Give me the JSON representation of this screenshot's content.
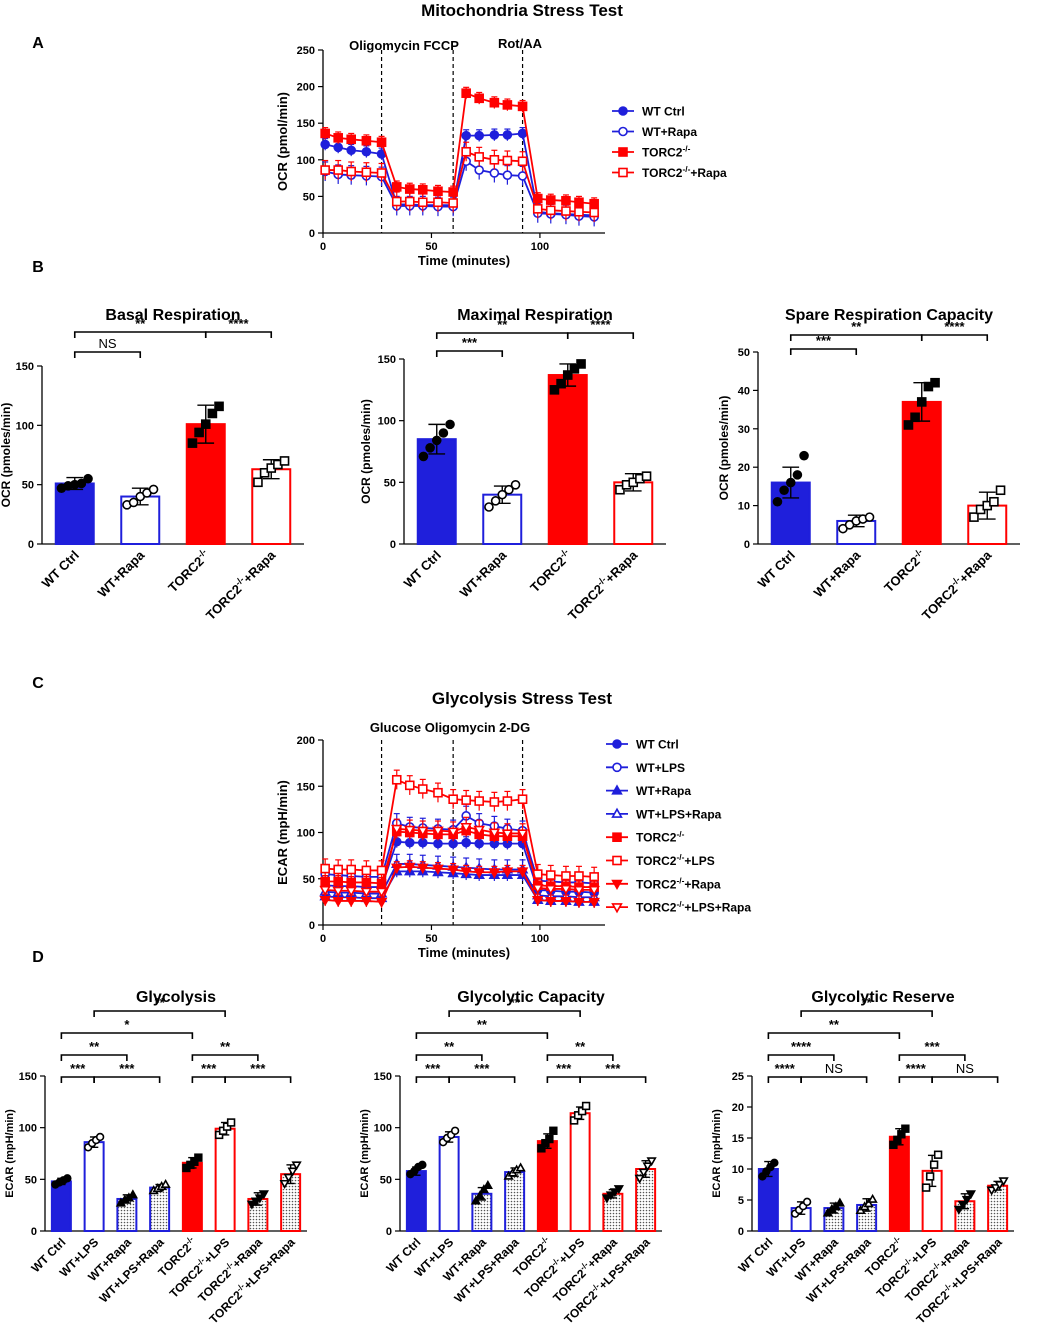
{
  "figure": {
    "panel_letters": [
      "A",
      "B",
      "C",
      "D"
    ]
  },
  "colors": {
    "blue": "#1f1fdb",
    "red": "#ff0000",
    "black": "#000000"
  },
  "chart_data": [
    {
      "id": "mito",
      "type": "line",
      "title": "Mitochondria Stress Test",
      "xlabel": "Time (minutes)",
      "ylabel": "OCR (pmol/min)",
      "xlim": [
        0,
        130
      ],
      "ylim": [
        0,
        250
      ],
      "xticks": [
        0,
        50,
        100
      ],
      "yticks": [
        0,
        50,
        100,
        150,
        200,
        250
      ],
      "injections": [
        {
          "x": 27,
          "label": "Oligomycin"
        },
        {
          "x": 60,
          "label": "FCCP"
        },
        {
          "x": 92,
          "label": "Rot/AA"
        }
      ],
      "x": [
        1,
        7,
        13,
        20,
        27,
        34,
        40,
        46,
        53,
        60,
        66,
        72,
        79,
        85,
        92,
        99,
        105,
        112,
        118,
        125
      ],
      "series": [
        {
          "name": "WT Ctrl",
          "sup": "",
          "color": "blue",
          "marker": "circle",
          "filled": true,
          "values": [
            121,
            117,
            113,
            111,
            108,
            39,
            39,
            38,
            38,
            38,
            133,
            133,
            134,
            134,
            136,
            29,
            27,
            26,
            25,
            24
          ]
        },
        {
          "name": "WT+Rapa",
          "sup": "",
          "color": "blue",
          "marker": "circle",
          "filled": false,
          "values": [
            84,
            80,
            79,
            78,
            77,
            37,
            37,
            37,
            36,
            36,
            98,
            86,
            82,
            79,
            78,
            27,
            26,
            25,
            23,
            22
          ]
        },
        {
          "name": "TORC2",
          "sup": "-/-",
          "color": "red",
          "marker": "square",
          "filled": true,
          "values": [
            136,
            130,
            128,
            126,
            124,
            63,
            60,
            59,
            57,
            56,
            191,
            184,
            178,
            175,
            173,
            47,
            45,
            44,
            42,
            40
          ]
        },
        {
          "name": "TORC2",
          "sup": "-/-",
          "suffix": "+Rapa",
          "color": "red",
          "marker": "square",
          "filled": false,
          "values": [
            86,
            86,
            84,
            83,
            82,
            43,
            43,
            42,
            42,
            41,
            111,
            104,
            100,
            99,
            98,
            33,
            31,
            30,
            29,
            28
          ]
        }
      ]
    },
    {
      "id": "basal",
      "type": "bar",
      "title": "Basal Respiration",
      "ylabel": "OCR (pmoles/min)",
      "ylim": [
        0,
        150
      ],
      "yticks": [
        0,
        50,
        100,
        150
      ],
      "categories": [
        "WT Ctrl",
        "WT+Rapa",
        "TORC2-/-",
        "TORC2-/-+Rapa"
      ],
      "values": [
        51,
        40,
        101,
        63
      ],
      "errors": [
        5,
        7,
        16,
        8
      ],
      "points": [
        [
          47,
          49,
          50,
          51,
          55
        ],
        [
          33,
          35,
          40,
          43,
          46
        ],
        [
          85,
          94,
          101,
          110,
          116
        ],
        [
          52,
          60,
          64,
          67,
          70
        ]
      ],
      "significance": [
        {
          "from": 0,
          "to": 1,
          "label": "NS",
          "level": 1
        },
        {
          "from": 0,
          "to": 2,
          "label": "**",
          "level": 2
        },
        {
          "from": 2,
          "to": 3,
          "label": "****",
          "level": 2
        }
      ]
    },
    {
      "id": "maximal",
      "type": "bar",
      "title": "Maximal Respiration",
      "ylabel": "OCR (pmoles/min)",
      "ylim": [
        0,
        150
      ],
      "yticks": [
        0,
        50,
        100,
        150
      ],
      "categories": [
        "WT Ctrl",
        "WT+Rapa",
        "TORC2-/-",
        "TORC2-/-+Rapa"
      ],
      "values": [
        85,
        40,
        137,
        50
      ],
      "errors": [
        12,
        7,
        9,
        7
      ],
      "points": [
        [
          71,
          78,
          84,
          90,
          97
        ],
        [
          30,
          35,
          40,
          44,
          48
        ],
        [
          125,
          130,
          137,
          142,
          146
        ],
        [
          44,
          48,
          50,
          53,
          55
        ]
      ],
      "significance": [
        {
          "from": 0,
          "to": 1,
          "label": "***",
          "level": 1
        },
        {
          "from": 0,
          "to": 2,
          "label": "**",
          "level": 2
        },
        {
          "from": 2,
          "to": 3,
          "label": "****",
          "level": 2
        }
      ]
    },
    {
      "id": "spare",
      "type": "bar",
      "title": "Spare Respiration Capacity",
      "ylabel": "OCR (pmoles/min)",
      "ylim": [
        0,
        50
      ],
      "yticks": [
        0,
        10,
        20,
        30,
        40,
        50
      ],
      "categories": [
        "WT Ctrl",
        "WT+Rapa",
        "TORC2-/-",
        "TORC2-/-+Rapa"
      ],
      "values": [
        16,
        6,
        37,
        10
      ],
      "errors": [
        4,
        1.5,
        5,
        3.5
      ],
      "points": [
        [
          11,
          14,
          16,
          18,
          23
        ],
        [
          4,
          5,
          6,
          6.5,
          7
        ],
        [
          31,
          33,
          37,
          41,
          42
        ],
        [
          7,
          9,
          10,
          11,
          14
        ]
      ],
      "significance": [
        {
          "from": 0,
          "to": 1,
          "label": "***",
          "level": 1
        },
        {
          "from": 0,
          "to": 2,
          "label": "**",
          "level": 2
        },
        {
          "from": 2,
          "to": 3,
          "label": "****",
          "level": 2
        }
      ]
    },
    {
      "id": "glyco",
      "type": "line",
      "title": "Glycolysis Stress Test",
      "xlabel": "Time (minutes)",
      "ylabel": "ECAR (mpH/min)",
      "xlim": [
        0,
        130
      ],
      "ylim": [
        0,
        200
      ],
      "xticks": [
        0,
        50,
        100
      ],
      "yticks": [
        0,
        50,
        100,
        150,
        200
      ],
      "injections": [
        {
          "x": 27,
          "label": "Glucose"
        },
        {
          "x": 60,
          "label": "Oligomycin"
        },
        {
          "x": 92,
          "label": "2-DG"
        }
      ],
      "x": [
        1,
        7,
        13,
        20,
        27,
        34,
        40,
        46,
        53,
        60,
        66,
        72,
        79,
        85,
        92,
        99,
        105,
        112,
        118,
        125
      ],
      "series": [
        {
          "name": "WT Ctrl",
          "sup": "",
          "color": "blue",
          "marker": "circle",
          "filled": true,
          "values": [
            43,
            42,
            42,
            41,
            41,
            90,
            89,
            89,
            88,
            88,
            89,
            88,
            88,
            88,
            88,
            38,
            37,
            36,
            36,
            35
          ]
        },
        {
          "name": "WT+LPS",
          "sup": "",
          "color": "blue",
          "marker": "circle",
          "filled": false,
          "values": [
            55,
            54,
            53,
            52,
            52,
            110,
            106,
            105,
            104,
            103,
            118,
            110,
            107,
            104,
            102,
            48,
            47,
            46,
            46,
            45
          ]
        },
        {
          "name": "WT+Rapa",
          "sup": "",
          "color": "blue",
          "marker": "triangle",
          "filled": true,
          "values": [
            31,
            30,
            30,
            29,
            29,
            58,
            58,
            58,
            57,
            56,
            55,
            54,
            54,
            54,
            54,
            27,
            26,
            26,
            25,
            25
          ]
        },
        {
          "name": "WT+LPS+Rapa",
          "sup": "",
          "color": "blue",
          "marker": "triangle",
          "filled": false,
          "values": [
            36,
            35,
            35,
            34,
            34,
            66,
            66,
            65,
            64,
            63,
            62,
            61,
            60,
            60,
            60,
            32,
            31,
            31,
            30,
            30
          ]
        },
        {
          "name": "TORC2",
          "sup": "-/-",
          "color": "red",
          "marker": "square",
          "filled": true,
          "values": [
            47,
            47,
            46,
            46,
            45,
            101,
            100,
            99,
            98,
            98,
            102,
            98,
            96,
            96,
            96,
            43,
            42,
            42,
            41,
            41
          ]
        },
        {
          "name": "TORC2",
          "sup": "-/-",
          "suffix": "+LPS",
          "color": "red",
          "marker": "square",
          "filled": false,
          "values": [
            61,
            60,
            60,
            59,
            59,
            157,
            151,
            147,
            143,
            136,
            135,
            134,
            133,
            134,
            136,
            55,
            54,
            53,
            53,
            52
          ]
        },
        {
          "name": "TORC2",
          "sup": "-/-",
          "suffix": "+Rapa",
          "color": "red",
          "marker": "triangle-down",
          "filled": true,
          "values": [
            27,
            26,
            26,
            26,
            25,
            62,
            63,
            62,
            61,
            60,
            58,
            57,
            57,
            58,
            58,
            27,
            26,
            26,
            25,
            25
          ]
        },
        {
          "name": "TORC2",
          "sup": "-/-",
          "suffix": "+LPS+Rapa",
          "color": "red",
          "marker": "triangle-down",
          "filled": false,
          "values": [
            38,
            37,
            37,
            36,
            36,
            104,
            103,
            102,
            102,
            101,
            106,
            103,
            100,
            99,
            99,
            40,
            39,
            39,
            38,
            38
          ]
        }
      ]
    },
    {
      "id": "glycolysis",
      "type": "bar",
      "title": "Glycolysis",
      "ylabel": "ECAR (mpH/min)",
      "ylim": [
        0,
        150
      ],
      "yticks": [
        0,
        50,
        100,
        150
      ],
      "categories": [
        "WT Ctrl",
        "WT+LPS",
        "WT+Rapa",
        "WT+LPS+Rapa",
        "TORC2-/-",
        "TORC2-/-+LPS",
        "TORC2-/-+Rapa",
        "TORC2-/-+LPS+Rapa"
      ],
      "values": [
        48,
        86,
        31,
        42,
        66,
        99,
        31,
        55
      ],
      "errors": [
        3,
        5,
        4,
        3,
        5,
        6,
        6,
        9
      ],
      "points": [
        [
          45,
          47,
          49,
          51
        ],
        [
          81,
          85,
          88,
          91
        ],
        [
          27,
          30,
          32,
          35
        ],
        [
          39,
          41,
          43,
          45
        ],
        [
          61,
          64,
          67,
          71
        ],
        [
          93,
          97,
          101,
          105
        ],
        [
          26,
          29,
          32,
          36
        ],
        [
          46,
          52,
          58,
          64
        ]
      ],
      "significance": [
        {
          "from": 0,
          "to": 1,
          "label": "***",
          "level": 1
        },
        {
          "from": 1,
          "to": 3,
          "label": "***",
          "level": 1
        },
        {
          "from": 4,
          "to": 5,
          "label": "***",
          "level": 1
        },
        {
          "from": 5,
          "to": 7,
          "label": "***",
          "level": 1
        },
        {
          "from": 0,
          "to": 2,
          "label": "**",
          "level": 2
        },
        {
          "from": 4,
          "to": 6,
          "label": "**",
          "level": 2
        },
        {
          "from": 0,
          "to": 4,
          "label": "*",
          "level": 3
        },
        {
          "from": 1,
          "to": 5,
          "label": "**",
          "level": 4
        }
      ]
    },
    {
      "id": "capacity",
      "type": "bar",
      "title": "Glycolytic Capacity",
      "ylabel": "ECAR (mpH/min)",
      "ylim": [
        0,
        150
      ],
      "yticks": [
        0,
        50,
        100,
        150
      ],
      "categories": [
        "WT Ctrl",
        "WT+LPS",
        "WT+Rapa",
        "WT+LPS+Rapa",
        "TORC2-/-",
        "TORC2-/-+LPS",
        "TORC2-/-+Rapa",
        "TORC2-/-+LPS+Rapa"
      ],
      "values": [
        58,
        91,
        36,
        57,
        87,
        114,
        36,
        60
      ],
      "errors": [
        4,
        5,
        6,
        4,
        7,
        6,
        4,
        8
      ],
      "points": [
        [
          55,
          58,
          62,
          64
        ],
        [
          86,
          90,
          93,
          97
        ],
        [
          29,
          34,
          40,
          44
        ],
        [
          53,
          56,
          59,
          61
        ],
        [
          80,
          85,
          89,
          97
        ],
        [
          107,
          112,
          116,
          121
        ],
        [
          32,
          35,
          38,
          41
        ],
        [
          51,
          57,
          63,
          68
        ]
      ],
      "significance": [
        {
          "from": 0,
          "to": 1,
          "label": "***",
          "level": 1
        },
        {
          "from": 1,
          "to": 3,
          "label": "***",
          "level": 1
        },
        {
          "from": 4,
          "to": 5,
          "label": "***",
          "level": 1
        },
        {
          "from": 5,
          "to": 7,
          "label": "***",
          "level": 1
        },
        {
          "from": 0,
          "to": 2,
          "label": "**",
          "level": 2
        },
        {
          "from": 4,
          "to": 6,
          "label": "**",
          "level": 2
        },
        {
          "from": 0,
          "to": 4,
          "label": "**",
          "level": 3
        },
        {
          "from": 1,
          "to": 5,
          "label": "**",
          "level": 4
        }
      ]
    },
    {
      "id": "reserve",
      "type": "bar",
      "title": "Glycolytic Reserve",
      "ylabel": "ECAR (mpH/min)",
      "ylim": [
        0,
        25
      ],
      "yticks": [
        0,
        5,
        10,
        15,
        20,
        25
      ],
      "categories": [
        "WT Ctrl",
        "WT+LPS",
        "WT+Rapa",
        "WT+LPS+Rapa",
        "TORC2-/-",
        "TORC2-/-+LPS",
        "TORC2-/-+Rapa",
        "TORC2-/-+LPS+Rapa"
      ],
      "values": [
        10,
        3.7,
        3.7,
        4.2,
        15.2,
        9.7,
        4.8,
        7.3
      ],
      "errors": [
        1.2,
        1,
        0.8,
        1,
        1.3,
        2.5,
        1.2,
        0.7
      ],
      "points": [
        [
          8.8,
          9.6,
          10.3,
          11
        ],
        [
          2.8,
          3.4,
          4,
          4.7
        ],
        [
          2.9,
          3.5,
          3.9,
          4.5
        ],
        [
          3.3,
          3.9,
          4.4,
          5.1
        ],
        [
          13.9,
          14.7,
          15.6,
          16.5
        ],
        [
          7,
          8.8,
          10.7,
          12.3
        ],
        [
          3.5,
          4.3,
          5.1,
          6
        ],
        [
          6.6,
          7,
          7.5,
          8.1
        ]
      ],
      "significance": [
        {
          "from": 0,
          "to": 1,
          "label": "****",
          "level": 1
        },
        {
          "from": 1,
          "to": 3,
          "label": "NS",
          "level": 1
        },
        {
          "from": 4,
          "to": 5,
          "label": "****",
          "level": 1
        },
        {
          "from": 5,
          "to": 7,
          "label": "NS",
          "level": 1
        },
        {
          "from": 0,
          "to": 2,
          "label": "****",
          "level": 2
        },
        {
          "from": 4,
          "to": 6,
          "label": "***",
          "level": 2
        },
        {
          "from": 0,
          "to": 4,
          "label": "**",
          "level": 3
        },
        {
          "from": 1,
          "to": 5,
          "label": "**",
          "level": 4
        }
      ]
    }
  ]
}
